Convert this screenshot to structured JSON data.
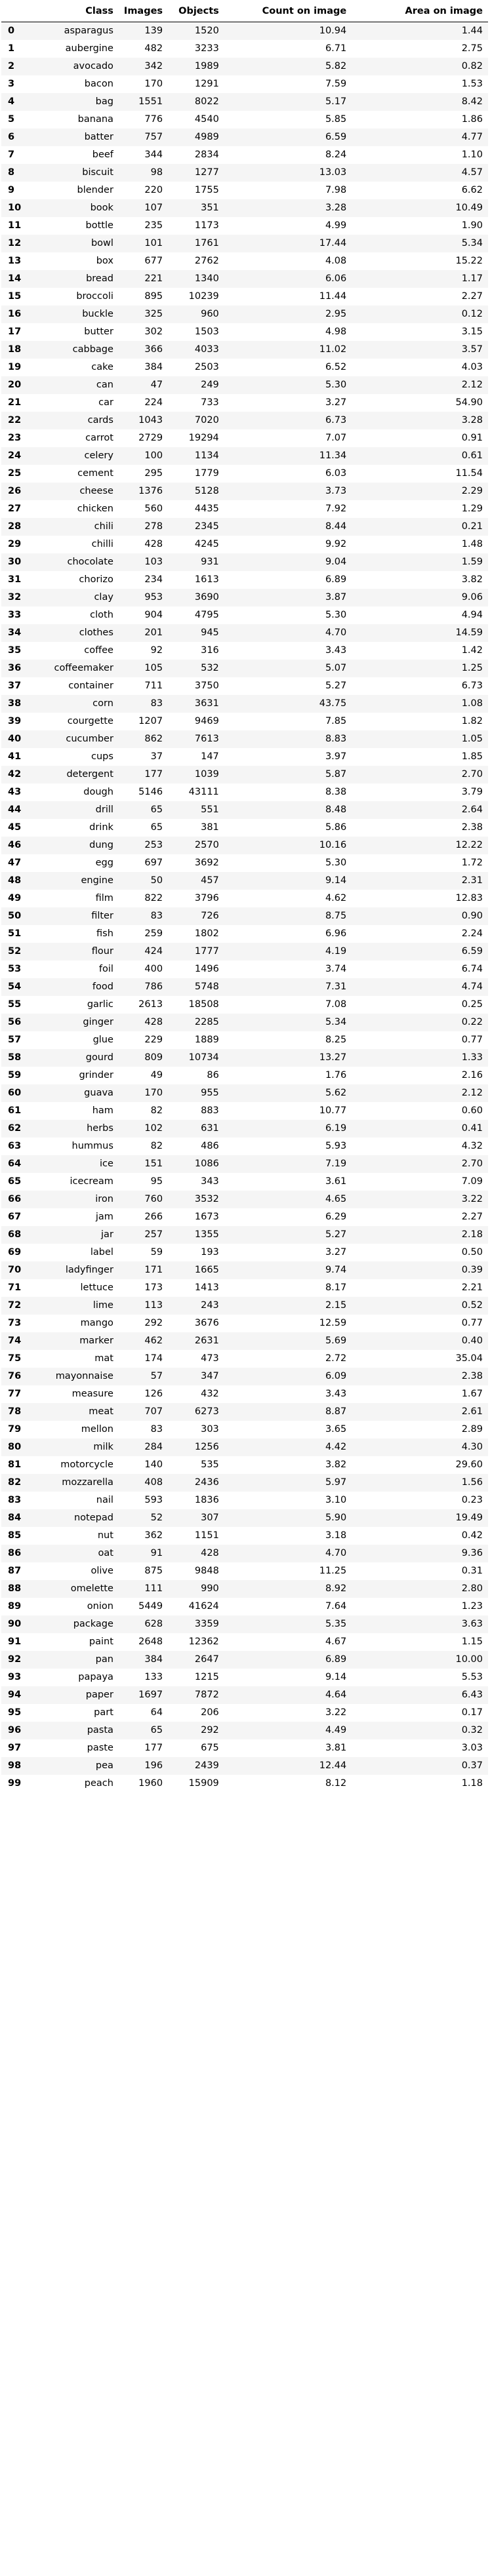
{
  "table": {
    "headers": [
      "",
      "Class",
      "Images",
      "Objects",
      "Count on image",
      "Area on image"
    ],
    "rows": [
      [
        0,
        "asparagus",
        "139",
        "1520",
        "10.94",
        "1.44"
      ],
      [
        1,
        "aubergine",
        "482",
        "3233",
        "6.71",
        "2.75"
      ],
      [
        2,
        "avocado",
        "342",
        "1989",
        "5.82",
        "0.82"
      ],
      [
        3,
        "bacon",
        "170",
        "1291",
        "7.59",
        "1.53"
      ],
      [
        4,
        "bag",
        "1551",
        "8022",
        "5.17",
        "8.42"
      ],
      [
        5,
        "banana",
        "776",
        "4540",
        "5.85",
        "1.86"
      ],
      [
        6,
        "batter",
        "757",
        "4989",
        "6.59",
        "4.77"
      ],
      [
        7,
        "beef",
        "344",
        "2834",
        "8.24",
        "1.10"
      ],
      [
        8,
        "biscuit",
        "98",
        "1277",
        "13.03",
        "4.57"
      ],
      [
        9,
        "blender",
        "220",
        "1755",
        "7.98",
        "6.62"
      ],
      [
        10,
        "book",
        "107",
        "351",
        "3.28",
        "10.49"
      ],
      [
        11,
        "bottle",
        "235",
        "1173",
        "4.99",
        "1.90"
      ],
      [
        12,
        "bowl",
        "101",
        "1761",
        "17.44",
        "5.34"
      ],
      [
        13,
        "box",
        "677",
        "2762",
        "4.08",
        "15.22"
      ],
      [
        14,
        "bread",
        "221",
        "1340",
        "6.06",
        "1.17"
      ],
      [
        15,
        "broccoli",
        "895",
        "10239",
        "11.44",
        "2.27"
      ],
      [
        16,
        "buckle",
        "325",
        "960",
        "2.95",
        "0.12"
      ],
      [
        17,
        "butter",
        "302",
        "1503",
        "4.98",
        "3.15"
      ],
      [
        18,
        "cabbage",
        "366",
        "4033",
        "11.02",
        "3.57"
      ],
      [
        19,
        "cake",
        "384",
        "2503",
        "6.52",
        "4.03"
      ],
      [
        20,
        "can",
        "47",
        "249",
        "5.30",
        "2.12"
      ],
      [
        21,
        "car",
        "224",
        "733",
        "3.27",
        "54.90"
      ],
      [
        22,
        "cards",
        "1043",
        "7020",
        "6.73",
        "3.28"
      ],
      [
        23,
        "carrot",
        "2729",
        "19294",
        "7.07",
        "0.91"
      ],
      [
        24,
        "celery",
        "100",
        "1134",
        "11.34",
        "0.61"
      ],
      [
        25,
        "cement",
        "295",
        "1779",
        "6.03",
        "11.54"
      ],
      [
        26,
        "cheese",
        "1376",
        "5128",
        "3.73",
        "2.29"
      ],
      [
        27,
        "chicken",
        "560",
        "4435",
        "7.92",
        "1.29"
      ],
      [
        28,
        "chili",
        "278",
        "2345",
        "8.44",
        "0.21"
      ],
      [
        29,
        "chilli",
        "428",
        "4245",
        "9.92",
        "1.48"
      ],
      [
        30,
        "chocolate",
        "103",
        "931",
        "9.04",
        "1.59"
      ],
      [
        31,
        "chorizo",
        "234",
        "1613",
        "6.89",
        "3.82"
      ],
      [
        32,
        "clay",
        "953",
        "3690",
        "3.87",
        "9.06"
      ],
      [
        33,
        "cloth",
        "904",
        "4795",
        "5.30",
        "4.94"
      ],
      [
        34,
        "clothes",
        "201",
        "945",
        "4.70",
        "14.59"
      ],
      [
        35,
        "coffee",
        "92",
        "316",
        "3.43",
        "1.42"
      ],
      [
        36,
        "coffeemaker",
        "105",
        "532",
        "5.07",
        "1.25"
      ],
      [
        37,
        "container",
        "711",
        "3750",
        "5.27",
        "6.73"
      ],
      [
        38,
        "corn",
        "83",
        "3631",
        "43.75",
        "1.08"
      ],
      [
        39,
        "courgette",
        "1207",
        "9469",
        "7.85",
        "1.82"
      ],
      [
        40,
        "cucumber",
        "862",
        "7613",
        "8.83",
        "1.05"
      ],
      [
        41,
        "cups",
        "37",
        "147",
        "3.97",
        "1.85"
      ],
      [
        42,
        "detergent",
        "177",
        "1039",
        "5.87",
        "2.70"
      ],
      [
        43,
        "dough",
        "5146",
        "43111",
        "8.38",
        "3.79"
      ],
      [
        44,
        "drill",
        "65",
        "551",
        "8.48",
        "2.64"
      ],
      [
        45,
        "drink",
        "65",
        "381",
        "5.86",
        "2.38"
      ],
      [
        46,
        "dung",
        "253",
        "2570",
        "10.16",
        "12.22"
      ],
      [
        47,
        "egg",
        "697",
        "3692",
        "5.30",
        "1.72"
      ],
      [
        48,
        "engine",
        "50",
        "457",
        "9.14",
        "2.31"
      ],
      [
        49,
        "film",
        "822",
        "3796",
        "4.62",
        "12.83"
      ],
      [
        50,
        "filter",
        "83",
        "726",
        "8.75",
        "0.90"
      ],
      [
        51,
        "fish",
        "259",
        "1802",
        "6.96",
        "2.24"
      ],
      [
        52,
        "flour",
        "424",
        "1777",
        "4.19",
        "6.59"
      ],
      [
        53,
        "foil",
        "400",
        "1496",
        "3.74",
        "6.74"
      ],
      [
        54,
        "food",
        "786",
        "5748",
        "7.31",
        "4.74"
      ],
      [
        55,
        "garlic",
        "2613",
        "18508",
        "7.08",
        "0.25"
      ],
      [
        56,
        "ginger",
        "428",
        "2285",
        "5.34",
        "0.22"
      ],
      [
        57,
        "glue",
        "229",
        "1889",
        "8.25",
        "0.77"
      ],
      [
        58,
        "gourd",
        "809",
        "10734",
        "13.27",
        "1.33"
      ],
      [
        59,
        "grinder",
        "49",
        "86",
        "1.76",
        "2.16"
      ],
      [
        60,
        "guava",
        "170",
        "955",
        "5.62",
        "2.12"
      ],
      [
        61,
        "ham",
        "82",
        "883",
        "10.77",
        "0.60"
      ],
      [
        62,
        "herbs",
        "102",
        "631",
        "6.19",
        "0.41"
      ],
      [
        63,
        "hummus",
        "82",
        "486",
        "5.93",
        "4.32"
      ],
      [
        64,
        "ice",
        "151",
        "1086",
        "7.19",
        "2.70"
      ],
      [
        65,
        "icecream",
        "95",
        "343",
        "3.61",
        "7.09"
      ],
      [
        66,
        "iron",
        "760",
        "3532",
        "4.65",
        "3.22"
      ],
      [
        67,
        "jam",
        "266",
        "1673",
        "6.29",
        "2.27"
      ],
      [
        68,
        "jar",
        "257",
        "1355",
        "5.27",
        "2.18"
      ],
      [
        69,
        "label",
        "59",
        "193",
        "3.27",
        "0.50"
      ],
      [
        70,
        "ladyfinger",
        "171",
        "1665",
        "9.74",
        "0.39"
      ],
      [
        71,
        "lettuce",
        "173",
        "1413",
        "8.17",
        "2.21"
      ],
      [
        72,
        "lime",
        "113",
        "243",
        "2.15",
        "0.52"
      ],
      [
        73,
        "mango",
        "292",
        "3676",
        "12.59",
        "0.77"
      ],
      [
        74,
        "marker",
        "462",
        "2631",
        "5.69",
        "0.40"
      ],
      [
        75,
        "mat",
        "174",
        "473",
        "2.72",
        "35.04"
      ],
      [
        76,
        "mayonnaise",
        "57",
        "347",
        "6.09",
        "2.38"
      ],
      [
        77,
        "measure",
        "126",
        "432",
        "3.43",
        "1.67"
      ],
      [
        78,
        "meat",
        "707",
        "6273",
        "8.87",
        "2.61"
      ],
      [
        79,
        "mellon",
        "83",
        "303",
        "3.65",
        "2.89"
      ],
      [
        80,
        "milk",
        "284",
        "1256",
        "4.42",
        "4.30"
      ],
      [
        81,
        "motorcycle",
        "140",
        "535",
        "3.82",
        "29.60"
      ],
      [
        82,
        "mozzarella",
        "408",
        "2436",
        "5.97",
        "1.56"
      ],
      [
        83,
        "nail",
        "593",
        "1836",
        "3.10",
        "0.23"
      ],
      [
        84,
        "notepad",
        "52",
        "307",
        "5.90",
        "19.49"
      ],
      [
        85,
        "nut",
        "362",
        "1151",
        "3.18",
        "0.42"
      ],
      [
        86,
        "oat",
        "91",
        "428",
        "4.70",
        "9.36"
      ],
      [
        87,
        "olive",
        "875",
        "9848",
        "11.25",
        "0.31"
      ],
      [
        88,
        "omelette",
        "111",
        "990",
        "8.92",
        "2.80"
      ],
      [
        89,
        "onion",
        "5449",
        "41624",
        "7.64",
        "1.23"
      ],
      [
        90,
        "package",
        "628",
        "3359",
        "5.35",
        "3.63"
      ],
      [
        91,
        "paint",
        "2648",
        "12362",
        "4.67",
        "1.15"
      ],
      [
        92,
        "pan",
        "384",
        "2647",
        "6.89",
        "10.00"
      ],
      [
        93,
        "papaya",
        "133",
        "1215",
        "9.14",
        "5.53"
      ],
      [
        94,
        "paper",
        "1697",
        "7872",
        "4.64",
        "6.43"
      ],
      [
        95,
        "part",
        "64",
        "206",
        "3.22",
        "0.17"
      ],
      [
        96,
        "pasta",
        "65",
        "292",
        "4.49",
        "0.32"
      ],
      [
        97,
        "paste",
        "177",
        "675",
        "3.81",
        "3.03"
      ],
      [
        98,
        "pea",
        "196",
        "2439",
        "12.44",
        "0.37"
      ],
      [
        99,
        "peach",
        "1960",
        "15909",
        "8.12",
        "1.18"
      ]
    ]
  }
}
